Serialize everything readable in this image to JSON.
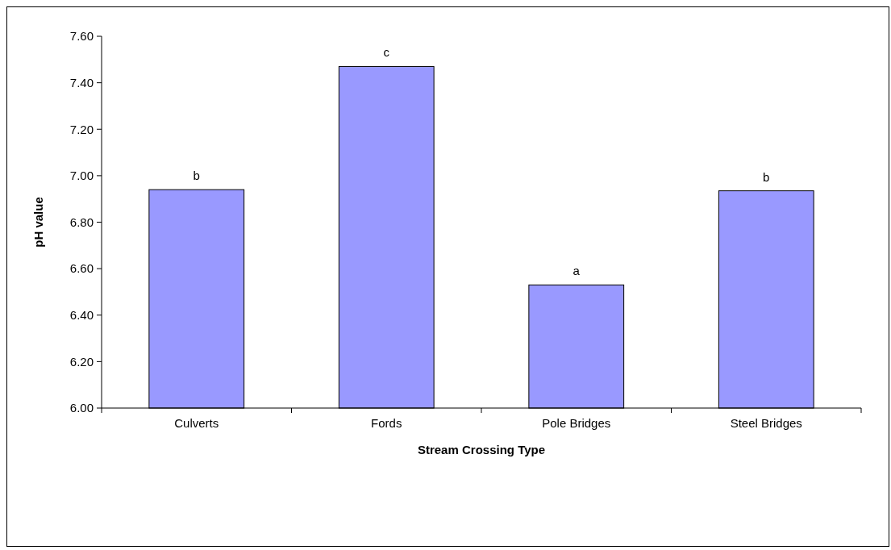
{
  "chart_data": {
    "type": "bar",
    "xlabel": "Stream Crossing Type",
    "ylabel": "pH value",
    "categories": [
      "Culverts",
      "Fords",
      "Pole Bridges",
      "Steel Bridges"
    ],
    "values": [
      6.94,
      7.47,
      6.53,
      6.935
    ],
    "color": "#9999ff",
    "ylim": [
      6.0,
      7.6
    ],
    "yticks": [
      {
        "value": 6.0,
        "label": "6.00"
      },
      {
        "value": 6.2,
        "label": "6.20"
      },
      {
        "value": 6.4,
        "label": "6.40"
      },
      {
        "value": 6.6,
        "label": "6.60"
      },
      {
        "value": 6.8,
        "label": "6.80"
      },
      {
        "value": 7.0,
        "label": "7.00"
      },
      {
        "value": 7.2,
        "label": "7.20"
      },
      {
        "value": 7.4,
        "label": "7.40"
      },
      {
        "value": 7.6,
        "label": "7.60"
      }
    ],
    "annotations": [
      {
        "text": "b",
        "x": "Culverts",
        "y": 6.94
      },
      {
        "text": "c",
        "x": "Fords",
        "y": 7.47
      },
      {
        "text": "a",
        "x": "Pole Bridges",
        "y": 6.53
      },
      {
        "text": "b",
        "x": "Steel Bridges",
        "y": 6.935
      }
    ],
    "grid": false
  }
}
